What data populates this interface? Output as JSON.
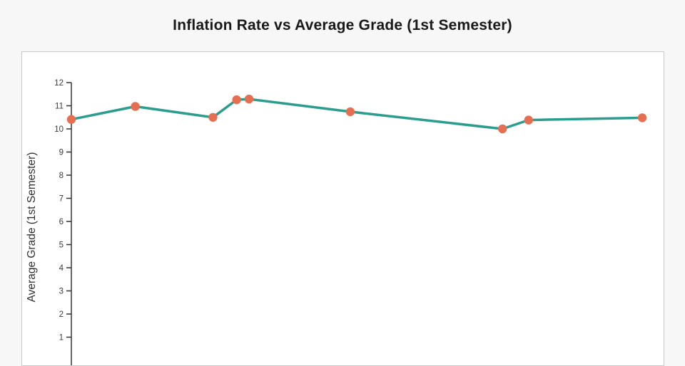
{
  "page": {
    "background_color": "#f7f7f7",
    "panel_background": "#ffffff",
    "panel_border_color": "#c9c9c9"
  },
  "chart_data": {
    "type": "line",
    "title": "Inflation Rate vs Average Grade (1st Semester)",
    "ylabel": "Average Grade (1st Semester)",
    "xlabel": "",
    "x_axis_visible": false,
    "grid": false,
    "legend": "none",
    "y_ticks": [
      12,
      11,
      10,
      9,
      8,
      7,
      6,
      5,
      4,
      3,
      2,
      1
    ],
    "ylim_top": 12,
    "line_color": "#2a9d8f",
    "marker_color": "#e76f51",
    "axis_color": "#333333",
    "tick_label_color": "#3a3a3a",
    "points": [
      {
        "x_frac": 0.0,
        "y": 10.41
      },
      {
        "x_frac": 0.108,
        "y": 10.97
      },
      {
        "x_frac": 0.239,
        "y": 10.5
      },
      {
        "x_frac": 0.279,
        "y": 11.26
      },
      {
        "x_frac": 0.3,
        "y": 11.29
      },
      {
        "x_frac": 0.471,
        "y": 10.74
      },
      {
        "x_frac": 0.728,
        "y": 10.0
      },
      {
        "x_frac": 0.772,
        "y": 10.38
      },
      {
        "x_frac": 0.964,
        "y": 10.48
      }
    ]
  }
}
